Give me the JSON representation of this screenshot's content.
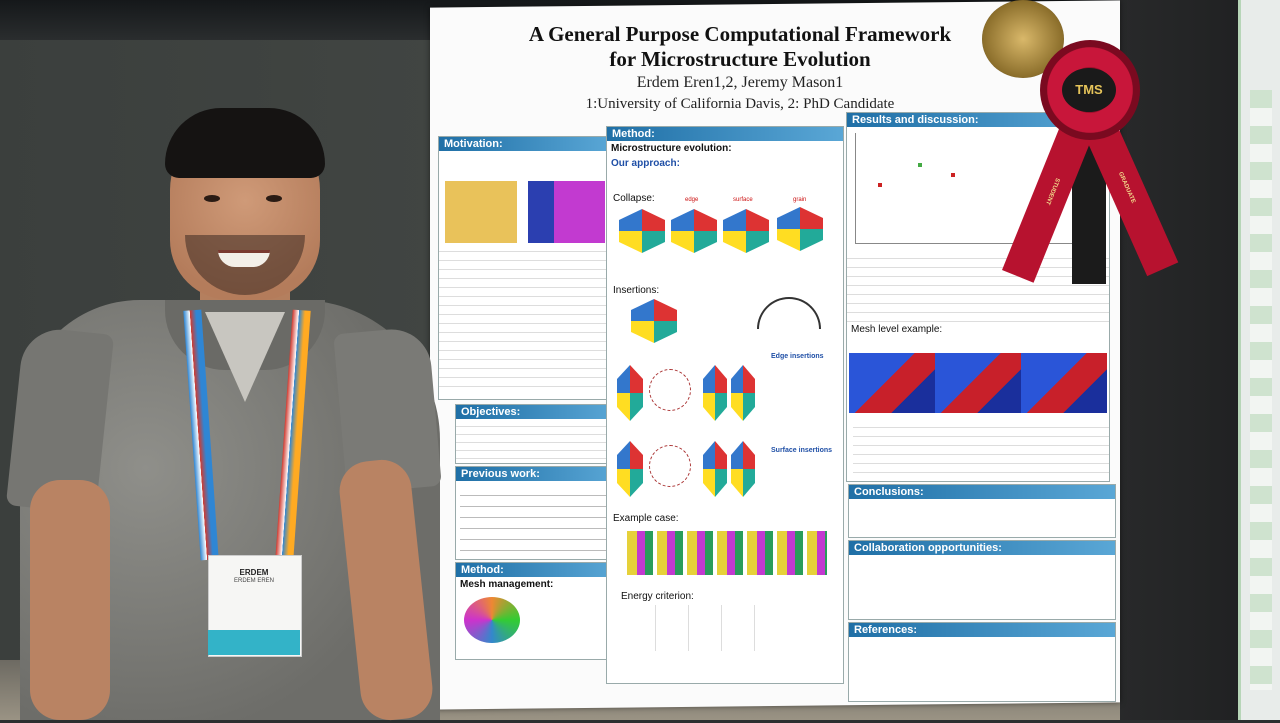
{
  "poster": {
    "title_line1": "A General Purpose Computational Framework",
    "title_line2": "for Microstructure Evolution",
    "authors": "Erdem Eren1,2, Jeremy Mason1",
    "affiliation": "1:University of California Davis, 2: PhD Candidate",
    "sections": {
      "motivation": "Motivation:",
      "method1": "Method:",
      "microstructure": "Microstructure evolution:",
      "approach": "Our approach:",
      "collapse": "Collapse:",
      "insertions": "Insertions:",
      "edge_insertions": "Edge insertions",
      "surface_insertions": "Surface insertions",
      "example_case": "Example case:",
      "energy_criterion": "Energy criterion:",
      "objectives": "Objectives:",
      "previous_work": "Previous work:",
      "method2": "Method:",
      "mesh_management": "Mesh management:",
      "results": "Results and discussion:",
      "mesh_level": "Mesh level example:",
      "conclusions": "Conclusions:",
      "collaboration": "Collaboration opportunities:",
      "references": "References:"
    },
    "cube_labels": [
      "edge",
      "surface",
      "grain"
    ]
  },
  "ribbon": {
    "center": "TMS",
    "left_tail": "STUDENT",
    "right_tail": "GRADUATE"
  },
  "badge": {
    "name": "ERDEM",
    "sub": "ERDEM EREN"
  },
  "colors": {
    "section_header": "#1f6fa6",
    "ribbon": "#b7122f"
  }
}
